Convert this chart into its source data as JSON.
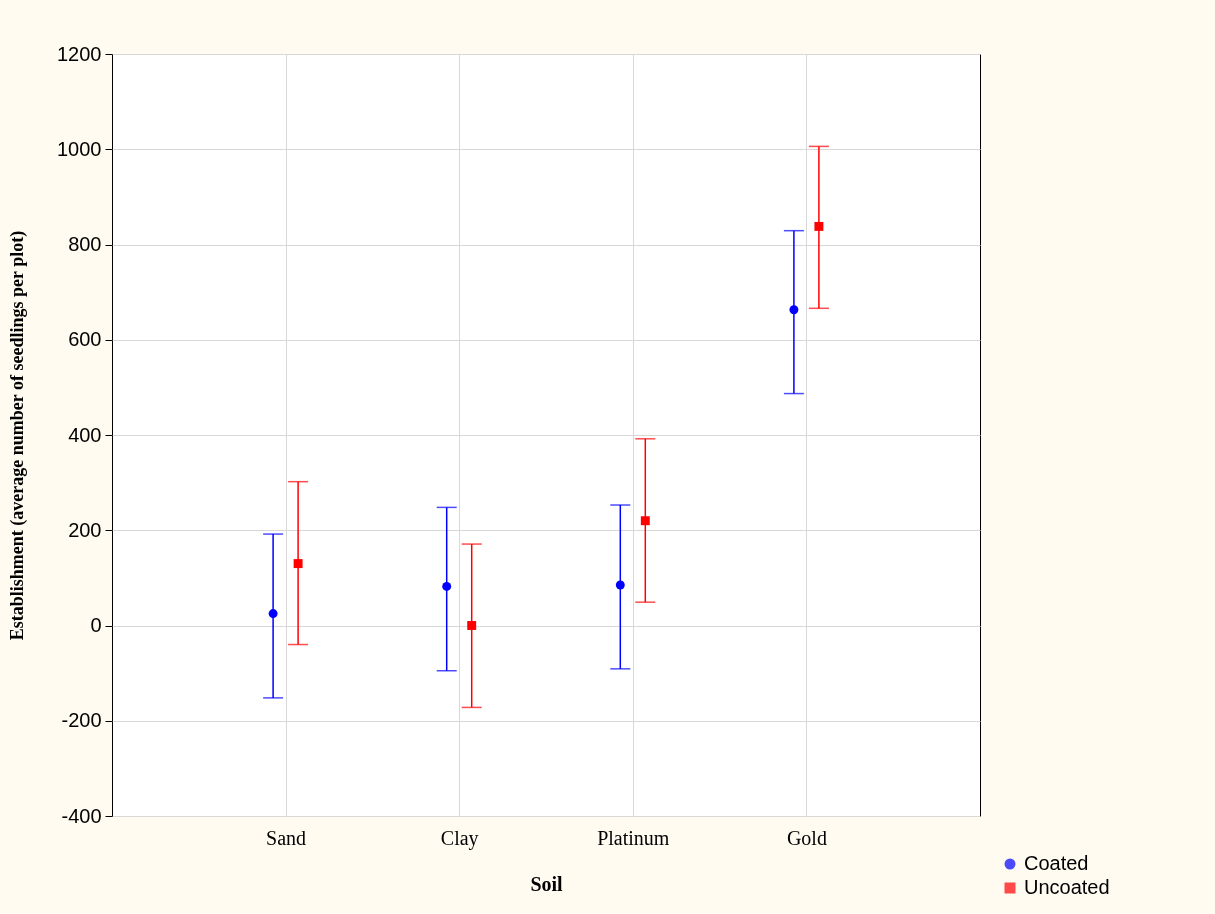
{
  "chart_data": {
    "type": "scatter",
    "xlabel": "Soil",
    "ylabel": "Establishment (average number of seedlings per plot)",
    "categories": [
      "Sand",
      "Clay",
      "Platinum",
      "Gold"
    ],
    "series": [
      {
        "name": "Coated",
        "color": "#0000ff",
        "marker": "circle",
        "values": [
          25,
          82,
          85,
          663
        ],
        "errors": [
          [
            -152,
            192
          ],
          [
            -95,
            248
          ],
          [
            -91,
            253
          ],
          [
            487,
            829
          ]
        ]
      },
      {
        "name": "Uncoated",
        "color": "#ff0000",
        "marker": "square",
        "values": [
          130,
          0,
          220,
          838
        ],
        "errors": [
          [
            -40,
            302
          ],
          [
            -172,
            171
          ],
          [
            49,
            392
          ],
          [
            666,
            1006
          ]
        ]
      }
    ],
    "ylim": [
      -400,
      1200
    ],
    "yticks": [
      -400,
      -200,
      0,
      200,
      400,
      600,
      800,
      1000,
      1200
    ],
    "grid": true,
    "legend": "bottom right"
  }
}
